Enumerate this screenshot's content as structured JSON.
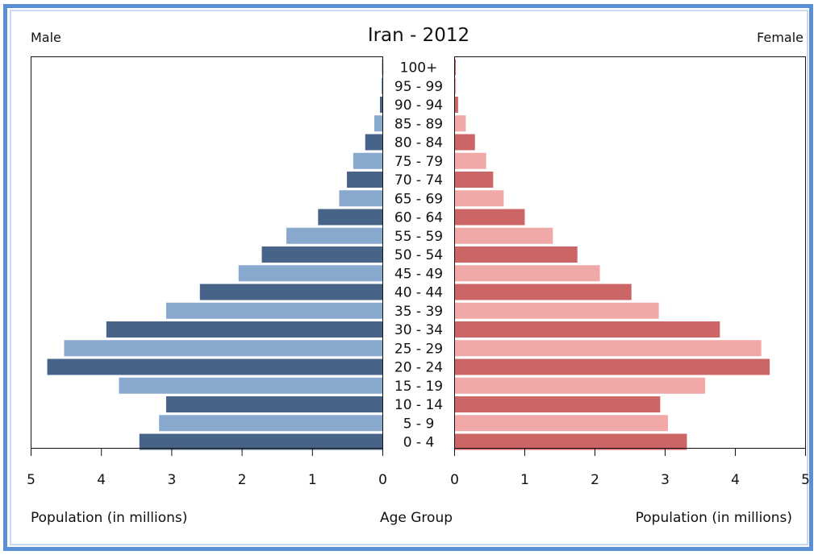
{
  "chart_data": {
    "type": "bar",
    "title": "Iran - 2012",
    "left_label": "Male",
    "right_label": "Female",
    "xlabel_left": "Population (in millions)",
    "xlabel_center": "Age Group",
    "xlabel_right": "Population (in millions)",
    "xlim": [
      0,
      5
    ],
    "x_ticks_left": [
      "5",
      "4",
      "3",
      "2",
      "1",
      "0"
    ],
    "x_ticks_right": [
      "0",
      "1",
      "2",
      "3",
      "4",
      "5"
    ],
    "categories": [
      "100+",
      "95 - 99",
      "90 - 94",
      "85 - 89",
      "80 - 84",
      "75 - 79",
      "70 - 74",
      "65 - 69",
      "60 - 64",
      "55 - 59",
      "50 - 54",
      "45 - 49",
      "40 - 44",
      "35 - 39",
      "30 - 34",
      "25 - 29",
      "20 - 24",
      "15 - 19",
      "10 - 14",
      "5 - 9",
      "0 - 4"
    ],
    "series": [
      {
        "name": "Male",
        "values": [
          0.01,
          0.02,
          0.04,
          0.12,
          0.25,
          0.42,
          0.51,
          0.62,
          0.92,
          1.37,
          1.72,
          2.05,
          2.6,
          3.08,
          3.93,
          4.53,
          4.77,
          3.75,
          3.08,
          3.18,
          3.46
        ]
      },
      {
        "name": "Female",
        "values": [
          0.01,
          0.02,
          0.05,
          0.16,
          0.29,
          0.45,
          0.55,
          0.7,
          1.0,
          1.4,
          1.75,
          2.07,
          2.52,
          2.91,
          3.78,
          4.37,
          4.49,
          3.57,
          2.93,
          3.04,
          3.31
        ]
      }
    ],
    "colors": {
      "male_dark": "#476488",
      "male_light": "#88a8cd",
      "female_dark": "#cc6566",
      "female_light": "#f0a8a9",
      "frame_blue": "#5a8fd6"
    },
    "grid": false
  }
}
